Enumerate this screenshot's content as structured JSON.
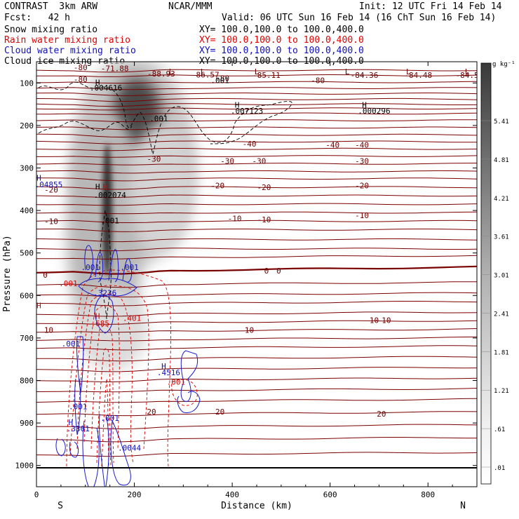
{
  "header": {
    "line1_left": "CONTRAST  3km ARW",
    "line1_center": "NCAR/MMM",
    "line1_right": "Init: 12 UTC Fri 14 Feb 14",
    "line2_left": "Fcst:   42 h",
    "line2_right": "Valid: 06 UTC Sun 16 Feb 14 (16 ChT Sun 16 Feb 14)",
    "fields": [
      {
        "name": "Snow mixing ratio",
        "xy": "XY= 100.0,100.0 to 100.0,400.0",
        "color": "#000000"
      },
      {
        "name": "Rain water mixing ratio",
        "xy": "XY= 100.0,100.0 to 100.0,400.0",
        "color": "#e00000"
      },
      {
        "name": "Cloud water mixing ratio",
        "xy": "XY= 100.0,100.0 to 100.0,400.0",
        "color": "#1010c0"
      },
      {
        "name": "Cloud ice mixing ratio",
        "xy": "XY= 100.0,100.0 to 100.0,400.0",
        "color": "#000000"
      }
    ]
  },
  "chart_data": {
    "type": "heatmap",
    "xlabel": "Distance (km)",
    "ylabel": "Pressure (hPa)",
    "x_ticks": [
      0,
      200,
      400,
      600,
      800
    ],
    "y_ticks": [
      100,
      200,
      300,
      400,
      500,
      600,
      700,
      800,
      900,
      1000
    ],
    "xlim": [
      0,
      900
    ],
    "ylim_hpa": [
      1050,
      50
    ],
    "left_end_label": "S",
    "right_end_label": "N",
    "colorbar": {
      "unit": "g kg⁻¹",
      "labels": [
        "5.41",
        "4.81",
        "4.21",
        "3.61",
        "3.01",
        "2.41",
        "1.81",
        "1.21",
        ".61",
        ".01"
      ]
    },
    "snow_shading": [
      {
        "x": 195,
        "p": 140,
        "value": 5.0
      },
      {
        "x": 155,
        "p": 300,
        "value": 4.0
      },
      {
        "x": 150,
        "p": 480,
        "value": 1.8
      },
      {
        "x": 230,
        "p": 260,
        "value": 1.5
      }
    ],
    "temperature_contours": [
      {
        "label": "-80",
        "levels_p": [
          70,
          88
        ]
      },
      {
        "label": "-40",
        "levels_p": [
          205
        ]
      },
      {
        "label": "-30",
        "levels_p": [
          238
        ]
      },
      {
        "label": "-20",
        "levels_p": [
          270
        ]
      },
      {
        "label": "-10",
        "levels_p": [
          325
        ]
      },
      {
        "label": "0",
        "levels_p": [
          545
        ]
      },
      {
        "label": "10",
        "levels_p": [
          685
        ]
      },
      {
        "label": "20",
        "levels_p": [
          880
        ]
      }
    ],
    "temperature_labels": [
      {
        "text": "-80",
        "x": 90,
        "p": 70
      },
      {
        "text": "-71.88",
        "x": 160,
        "p": 72
      },
      {
        "text": "-80",
        "x": 90,
        "p": 98
      },
      {
        "text": "-88.93",
        "x": 255,
        "p": 85
      },
      {
        "text": "-86.57",
        "x": 345,
        "p": 87
      },
      {
        "text": "-85.11",
        "x": 470,
        "p": 88
      },
      {
        "text": "-84.36",
        "x": 670,
        "p": 88
      },
      {
        "text": "-84.48",
        "x": 780,
        "p": 88
      },
      {
        "text": "-84.5",
        "x": 880,
        "p": 88
      },
      {
        "text": "-80",
        "x": 575,
        "p": 100
      },
      {
        "text": "-80",
        "x": 380,
        "p": 95
      },
      {
        "text": "-40",
        "x": 435,
        "p": 250
      },
      {
        "text": "-40",
        "x": 605,
        "p": 252
      },
      {
        "text": "-40",
        "x": 665,
        "p": 252
      },
      {
        "text": "-30",
        "x": 240,
        "p": 285
      },
      {
        "text": "-30",
        "x": 390,
        "p": 290
      },
      {
        "text": "-30",
        "x": 455,
        "p": 290
      },
      {
        "text": "-30",
        "x": 665,
        "p": 290
      },
      {
        "text": "-20",
        "x": 30,
        "p": 358
      },
      {
        "text": "-20",
        "x": 370,
        "p": 348
      },
      {
        "text": "-20",
        "x": 465,
        "p": 352
      },
      {
        "text": "-20",
        "x": 665,
        "p": 348
      },
      {
        "text": "-10",
        "x": 30,
        "p": 432
      },
      {
        "text": "-10",
        "x": 405,
        "p": 425
      },
      {
        "text": "-10",
        "x": 465,
        "p": 428
      },
      {
        "text": "-10",
        "x": 665,
        "p": 418
      },
      {
        "text": "0",
        "x": 18,
        "p": 558
      },
      {
        "text": "0",
        "x": 470,
        "p": 548
      },
      {
        "text": "0",
        "x": 495,
        "p": 548
      },
      {
        "text": "10",
        "x": 25,
        "p": 688
      },
      {
        "text": "10",
        "x": 435,
        "p": 688
      },
      {
        "text": "10",
        "x": 690,
        "p": 665
      },
      {
        "text": "10",
        "x": 715,
        "p": 665
      },
      {
        "text": "20",
        "x": 235,
        "p": 880
      },
      {
        "text": "20",
        "x": 375,
        "p": 880
      },
      {
        "text": "20",
        "x": 705,
        "p": 885
      }
    ],
    "annotations": [
      {
        "text": "H",
        "x": 125,
        "p": 105,
        "color": "#000000"
      },
      {
        "text": ".004616",
        "x": 142,
        "p": 118,
        "color": "#000000"
      },
      {
        "text": "L",
        "x": 275,
        "p": 80,
        "color": "#6b0000"
      },
      {
        "text": "L",
        "x": 340,
        "p": 80,
        "color": "#6b0000"
      },
      {
        "text": "L",
        "x": 450,
        "p": 80,
        "color": "#6b0000"
      },
      {
        "text": "L",
        "x": 635,
        "p": 80,
        "color": "#6b0000"
      },
      {
        "text": "L",
        "x": 760,
        "p": 80,
        "color": "#6b0000"
      },
      {
        "text": "L",
        "x": 880,
        "p": 80,
        "color": "#6b0000"
      },
      {
        "text": ".001",
        "x": 375,
        "p": 100,
        "color": "#000000"
      },
      {
        "text": "H",
        "x": 410,
        "p": 158,
        "color": "#000000"
      },
      {
        "text": ".007123",
        "x": 430,
        "p": 172,
        "color": "#000000"
      },
      {
        "text": "H",
        "x": 670,
        "p": 158,
        "color": "#000000"
      },
      {
        "text": ".000296",
        "x": 690,
        "p": 172,
        "color": "#000000"
      },
      {
        "text": ".001",
        "x": 250,
        "p": 190,
        "color": "#000000"
      },
      {
        "text": "H",
        "x": 5,
        "p": 330,
        "color": "#1010c0"
      },
      {
        "text": ".04855",
        "x": 25,
        "p": 345,
        "color": "#1010c0"
      },
      {
        "text": "H",
        "x": 125,
        "p": 350,
        "color": "#000000"
      },
      {
        "text": "H",
        "x": 140,
        "p": 350,
        "color": "#e00000"
      },
      {
        "text": ".002074",
        "x": 150,
        "p": 370,
        "color": "#000000"
      },
      {
        "text": ".001",
        "x": 150,
        "p": 430,
        "color": "#000000"
      },
      {
        "text": ".001",
        "x": 110,
        "p": 540,
        "color": "#1010c0"
      },
      {
        "text": ".001",
        "x": 190,
        "p": 540,
        "color": "#1010c0"
      },
      {
        "text": ".001",
        "x": 65,
        "p": 578,
        "color": "#e00000"
      },
      {
        "text": ".3236",
        "x": 140,
        "p": 600,
        "color": "#1010c0"
      },
      {
        "text": "H",
        "x": 5,
        "p": 630,
        "color": "#e00000"
      },
      {
        "text": "H",
        "x": 125,
        "p": 655,
        "color": "#e00000"
      },
      {
        "text": ".401",
        "x": 195,
        "p": 660,
        "color": "#e00000"
      },
      {
        "text": ".685",
        "x": 130,
        "p": 672,
        "color": "#e00000"
      },
      {
        "text": ".001",
        "x": 70,
        "p": 720,
        "color": "#1010c0"
      },
      {
        "text": "H",
        "x": 260,
        "p": 773,
        "color": "#1010c0"
      },
      {
        "text": ".4516",
        "x": 270,
        "p": 788,
        "color": "#1010c0"
      },
      {
        "text": ".001",
        "x": 285,
        "p": 810,
        "color": "#e00000"
      },
      {
        "text": ".001",
        "x": 85,
        "p": 868,
        "color": "#1010c0"
      },
      {
        "text": ".001",
        "x": 150,
        "p": 895,
        "color": "#1010c0"
      },
      {
        "text": "H",
        "x": 70,
        "p": 905,
        "color": "#1010c0"
      },
      {
        "text": ".3301",
        "x": 85,
        "p": 920,
        "color": "#1010c0"
      },
      {
        "text": ".0044",
        "x": 190,
        "p": 965,
        "color": "#1010c0"
      }
    ]
  }
}
